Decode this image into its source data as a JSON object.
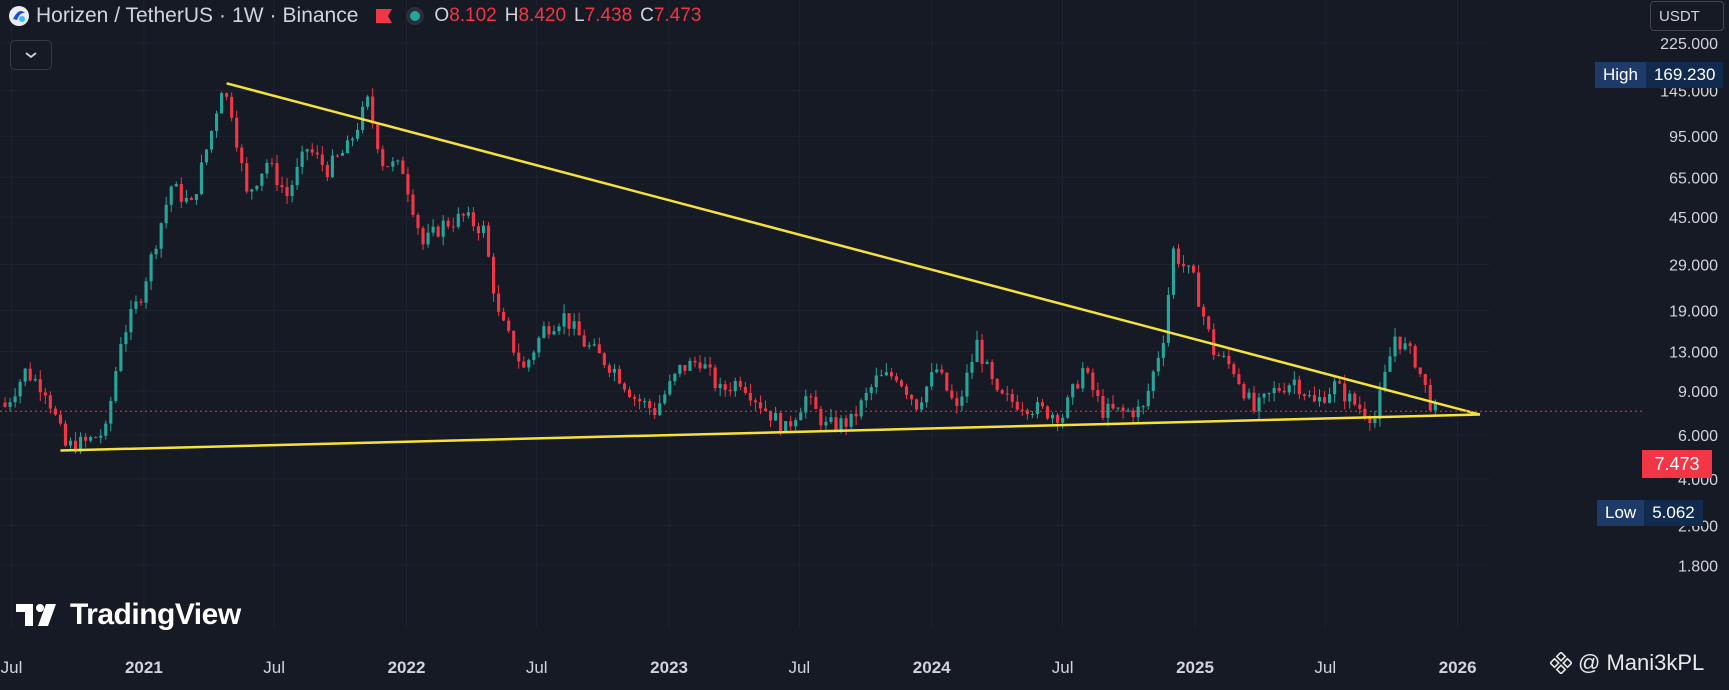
{
  "header": {
    "symbol": "Horizen / TetherUS",
    "sep1": "·",
    "interval": "1W",
    "sep2": "·",
    "exchange": "Binance",
    "ohlc": [
      {
        "k": "O",
        "v": "8.102"
      },
      {
        "k": "H",
        "v": "8.420"
      },
      {
        "k": "L",
        "v": "7.438"
      },
      {
        "k": "C",
        "v": "7.473"
      }
    ]
  },
  "currency_button": "USDT",
  "high_tag": {
    "label": "High",
    "value": "169.230"
  },
  "low_tag": {
    "label": "Low",
    "value": "5.062"
  },
  "last_price": "7.473",
  "brand": "TradingView",
  "watermark": "@ Mani3kPL",
  "colors": {
    "up": "#26a69a",
    "down": "#f23645",
    "trendline": "#f7e23b",
    "background": "#161a25"
  },
  "icons": {
    "collapse": "chevron-down-icon",
    "logo": "horizen-logo-icon",
    "flag": "flag-icon",
    "status": "market-status-icon"
  },
  "chart_data": {
    "type": "candlestick",
    "y_scale": "log",
    "ylim": [
      1.6,
      240
    ],
    "y_ticks": [
      {
        "value": 225,
        "label": "225.000"
      },
      {
        "value": 145,
        "label": "145.000"
      },
      {
        "value": 95,
        "label": "95.000"
      },
      {
        "value": 65,
        "label": "65.000"
      },
      {
        "value": 45,
        "label": "45.000"
      },
      {
        "value": 29,
        "label": "29.000"
      },
      {
        "value": 19,
        "label": "19.000"
      },
      {
        "value": 13,
        "label": "13.000"
      },
      {
        "value": 9,
        "label": "9.000"
      },
      {
        "value": 6,
        "label": "6.000"
      },
      {
        "value": 4,
        "label": "4.000"
      },
      {
        "value": 2.6,
        "label": "2.600"
      },
      {
        "value": 1.8,
        "label": "1.800"
      }
    ],
    "xlim": [
      "2020-06-15",
      "2026-02-15"
    ],
    "x_ticks": [
      {
        "date": "2020-07-01",
        "label": "Jul",
        "bold": false
      },
      {
        "date": "2021-01-01",
        "label": "2021",
        "bold": true
      },
      {
        "date": "2021-07-01",
        "label": "Jul",
        "bold": false
      },
      {
        "date": "2022-01-01",
        "label": "2022",
        "bold": true
      },
      {
        "date": "2022-07-01",
        "label": "Jul",
        "bold": false
      },
      {
        "date": "2023-01-01",
        "label": "2023",
        "bold": true
      },
      {
        "date": "2023-07-01",
        "label": "Jul",
        "bold": false
      },
      {
        "date": "2024-01-01",
        "label": "2024",
        "bold": true
      },
      {
        "date": "2024-07-01",
        "label": "Jul",
        "bold": false
      },
      {
        "date": "2025-01-01",
        "label": "2025",
        "bold": true
      },
      {
        "date": "2025-07-01",
        "label": "Jul",
        "bold": false
      },
      {
        "date": "2026-01-01",
        "label": "2026",
        "bold": true
      }
    ],
    "price_path": [
      [
        "2020-06-22",
        7.8
      ],
      [
        "2020-07-20",
        10.8
      ],
      [
        "2020-08-17",
        9.2
      ],
      [
        "2020-09-14",
        5.4
      ],
      [
        "2020-10-12",
        5.6
      ],
      [
        "2020-11-09",
        6.2
      ],
      [
        "2020-11-30",
        14.5
      ],
      [
        "2020-12-28",
        22
      ],
      [
        "2021-02-08",
        60
      ],
      [
        "2021-03-08",
        50
      ],
      [
        "2021-04-05",
        100
      ],
      [
        "2021-04-19",
        150
      ],
      [
        "2021-05-03",
        120
      ],
      [
        "2021-05-24",
        55
      ],
      [
        "2021-06-21",
        75
      ],
      [
        "2021-07-19",
        55
      ],
      [
        "2021-08-16",
        85
      ],
      [
        "2021-09-13",
        70
      ],
      [
        "2021-10-11",
        85
      ],
      [
        "2021-11-08",
        130
      ],
      [
        "2021-11-29",
        75
      ],
      [
        "2021-12-27",
        70
      ],
      [
        "2022-01-24",
        35
      ],
      [
        "2022-02-21",
        42
      ],
      [
        "2022-03-21",
        45
      ],
      [
        "2022-04-18",
        40
      ],
      [
        "2022-05-09",
        18
      ],
      [
        "2022-06-13",
        11
      ],
      [
        "2022-07-11",
        16
      ],
      [
        "2022-08-08",
        18
      ],
      [
        "2022-09-05",
        14
      ],
      [
        "2022-10-17",
        11
      ],
      [
        "2022-11-14",
        8.5
      ],
      [
        "2022-12-12",
        7.5
      ],
      [
        "2023-01-16",
        11
      ],
      [
        "2023-02-13",
        12
      ],
      [
        "2023-03-13",
        9
      ],
      [
        "2023-04-10",
        10
      ],
      [
        "2023-05-08",
        8
      ],
      [
        "2023-06-12",
        6.3
      ],
      [
        "2023-07-10",
        8.5
      ],
      [
        "2023-08-07",
        6.5
      ],
      [
        "2023-09-11",
        6.8
      ],
      [
        "2023-10-16",
        10
      ],
      [
        "2023-11-13",
        10.5
      ],
      [
        "2023-12-11",
        8
      ],
      [
        "2024-01-08",
        11
      ],
      [
        "2024-02-05",
        7.5
      ],
      [
        "2024-03-04",
        14
      ],
      [
        "2024-04-01",
        8.5
      ],
      [
        "2024-05-06",
        8
      ],
      [
        "2024-06-03",
        7.5
      ],
      [
        "2024-07-01",
        7.2
      ],
      [
        "2024-07-29",
        11
      ],
      [
        "2024-08-26",
        7.5
      ],
      [
        "2024-09-23",
        7.4
      ],
      [
        "2024-10-21",
        7.6
      ],
      [
        "2024-11-18",
        15
      ],
      [
        "2024-12-02",
        33
      ],
      [
        "2024-12-30",
        25
      ],
      [
        "2025-01-27",
        13
      ],
      [
        "2025-02-24",
        11
      ],
      [
        "2025-03-24",
        7.5
      ],
      [
        "2025-04-21",
        9
      ],
      [
        "2025-05-19",
        10
      ],
      [
        "2025-06-16",
        8
      ],
      [
        "2025-07-14",
        9.5
      ],
      [
        "2025-08-11",
        8
      ],
      [
        "2025-09-08",
        7
      ],
      [
        "2025-10-06",
        15
      ],
      [
        "2025-11-03",
        12
      ],
      [
        "2025-11-24",
        8.1
      ],
      [
        "2025-12-01",
        7.473
      ]
    ],
    "trendlines": [
      {
        "from": [
          "2021-04-26",
          155
        ],
        "to": [
          "2026-02-01",
          7.25
        ]
      },
      {
        "from": [
          "2020-09-07",
          5.2
        ],
        "to": [
          "2026-02-01",
          7.25
        ]
      }
    ]
  }
}
